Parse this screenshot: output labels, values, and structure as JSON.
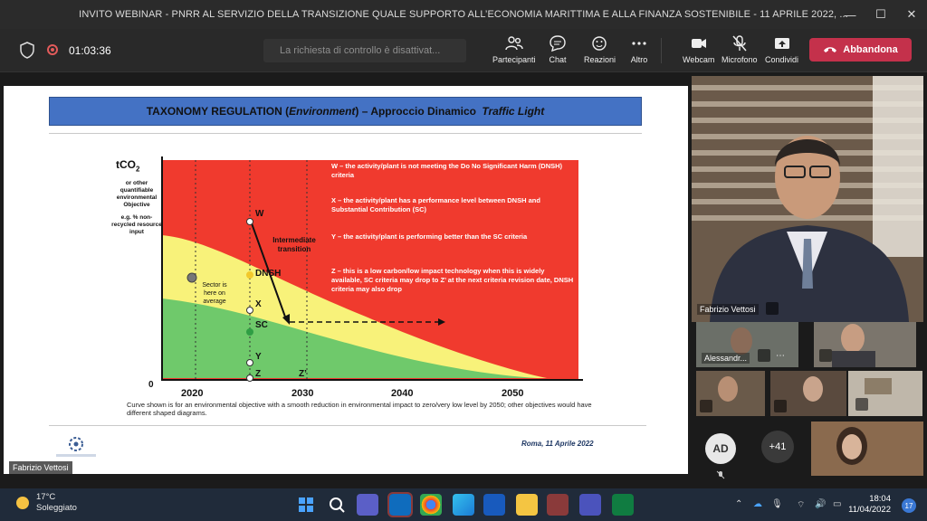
{
  "window": {
    "title": "INVITO WEBINAR - PNRR AL SERVIZIO DELLA TRANSIZIONE QUALE SUPPORTO ALL’ECONOMIA MARITTIMA E ALLA FINANZA SOSTENIBILE - 11 APRILE 2022, ..."
  },
  "toolbar": {
    "timer": "01:03:36",
    "control_request": "La richiesta di controllo è disattivat...",
    "participants": "Partecipanti",
    "chat": "Chat",
    "reactions": "Reazioni",
    "more": "Altro",
    "webcam": "Webcam",
    "mic": "Microfono",
    "share": "Condividi",
    "leave": "Abbandona",
    "leave_color": "#c4314b"
  },
  "slide": {
    "title_a": "TAXONOMY REGULATION (",
    "title_b": "Environment",
    "title_c": ") – Approccio Dinamico ",
    "title_d": "Traffic Light",
    "y_axis_title": "tCO",
    "y_axis_sub": "2",
    "y_axis_note1": "or other quantifiable environmental Objective",
    "y_axis_note2": "e.g. % non-recycled resource input",
    "zero": "0",
    "x_ticks": [
      "2020",
      "2030",
      "2040",
      "2050"
    ],
    "points": [
      "W",
      "DNSH",
      "X",
      "SC",
      "Y",
      "Z",
      "Z’"
    ],
    "intermediate": "Intermediate transition",
    "sector_note": "Sector is here on average",
    "legend_w": "W – the activity/plant is not meeting the Do No Significant Harm (DNSH) criteria",
    "legend_x": "X – the activity/plant has a performance level between DNSH and Substantial Contribution (SC)",
    "legend_y": "Y – the activity/plant is performing better than the SC criteria",
    "legend_z": "Z – this is a low carbon/low impact technology when this is widely available, SC criteria may drop to Z’ at the next criteria revision date, DNSH criteria may also drop",
    "caption": "Curve shown is for an environmental objective with a smooth reduction in environmental impact to zero/very low level by 2050; other objectives would have different shaped diagrams.",
    "footer": "Roma, 11 Aprile 2022"
  },
  "presenter": {
    "name": "Fabrizio Vettosi",
    "name_chip": "Fabrizio Vettosi"
  },
  "participants": {
    "tile2_name": "Alessandr...",
    "avatar_initials": "AD",
    "more_count": "+41"
  },
  "taskbar": {
    "temp": "17°C",
    "weather": "Soleggiato",
    "time": "18:04",
    "date": "11/04/2022",
    "notifications": "17"
  }
}
